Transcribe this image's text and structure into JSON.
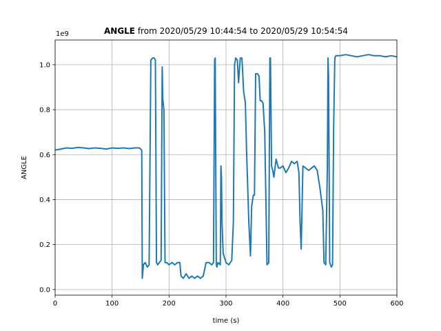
{
  "chart_data": {
    "type": "line",
    "title_bold": "ANGLE",
    "title_rest": " from 2020/05/29 10:44:54 to 2020/05/29 10:54:54",
    "xlabel": "time (s)",
    "ylabel": "ANGLE",
    "offset_label": "1e9",
    "xlim": [
      0,
      600
    ],
    "ylim": [
      -0.025,
      1.11
    ],
    "xticks": [
      0,
      100,
      200,
      300,
      400,
      500,
      600
    ],
    "xtick_labels": [
      "0",
      "100",
      "200",
      "300",
      "400",
      "500",
      "600"
    ],
    "yticks": [
      0.0,
      0.2,
      0.4,
      0.6,
      0.8,
      1.0
    ],
    "ytick_labels": [
      "0.0",
      "0.2",
      "0.4",
      "0.6",
      "0.8",
      "1.0"
    ],
    "grid": true,
    "color": "#1f77b4",
    "series": [
      {
        "x": [
          0,
          10,
          20,
          30,
          40,
          50,
          60,
          70,
          80,
          90,
          100,
          110,
          120,
          130,
          140,
          148,
          152,
          153,
          155,
          158,
          162,
          165,
          168,
          171,
          174,
          176,
          178,
          180,
          183,
          186,
          188,
          189,
          191,
          193,
          196,
          200,
          205,
          210,
          215,
          219,
          221,
          225,
          230,
          235,
          240,
          245,
          250,
          255,
          260,
          265,
          270,
          275,
          278,
          280,
          281,
          283,
          284,
          286,
          290,
          291,
          292,
          293,
          295,
          300,
          305,
          310,
          313,
          315,
          317,
          320,
          322,
          325,
          328,
          331,
          334,
          336,
          340,
          343,
          345,
          348,
          350,
          352,
          355,
          358,
          360,
          362,
          365,
          368,
          372,
          375,
          377,
          378,
          380,
          382,
          384,
          388,
          392,
          395,
          400,
          405,
          410,
          415,
          420,
          425,
          428,
          430,
          432,
          435,
          440,
          445,
          450,
          455,
          460,
          465,
          468,
          470,
          472,
          475,
          478,
          479,
          480,
          482,
          485,
          487,
          489,
          491,
          493,
          500,
          510,
          520,
          530,
          540,
          550,
          560,
          570,
          580,
          590,
          600
        ],
        "y": [
          0.62,
          0.625,
          0.63,
          0.628,
          0.632,
          0.63,
          0.627,
          0.63,
          0.628,
          0.625,
          0.63,
          0.628,
          0.63,
          0.627,
          0.63,
          0.63,
          0.62,
          0.05,
          0.11,
          0.12,
          0.1,
          0.11,
          1.02,
          1.03,
          1.03,
          1.02,
          0.12,
          0.11,
          0.12,
          0.13,
          0.99,
          0.85,
          0.8,
          0.12,
          0.12,
          0.11,
          0.12,
          0.11,
          0.12,
          0.12,
          0.06,
          0.05,
          0.07,
          0.05,
          0.06,
          0.05,
          0.06,
          0.05,
          0.06,
          0.12,
          0.12,
          0.11,
          0.12,
          1.02,
          1.03,
          0.11,
          0.1,
          0.12,
          0.11,
          0.55,
          0.5,
          0.3,
          0.16,
          0.12,
          0.11,
          0.13,
          0.3,
          1.0,
          1.03,
          1.02,
          0.92,
          1.03,
          1.03,
          0.88,
          0.83,
          0.62,
          0.3,
          0.15,
          0.37,
          0.42,
          0.42,
          0.96,
          0.96,
          0.95,
          0.84,
          0.84,
          0.83,
          0.7,
          0.11,
          0.12,
          1.03,
          1.03,
          0.55,
          0.53,
          0.5,
          0.58,
          0.54,
          0.54,
          0.55,
          0.52,
          0.54,
          0.57,
          0.56,
          0.57,
          0.52,
          0.3,
          0.18,
          0.55,
          0.54,
          0.53,
          0.54,
          0.55,
          0.53,
          0.45,
          0.39,
          0.35,
          0.12,
          0.11,
          0.55,
          1.03,
          0.95,
          0.12,
          0.1,
          0.11,
          0.72,
          1.03,
          1.04,
          1.04,
          1.045,
          1.04,
          1.035,
          1.04,
          1.045,
          1.04,
          1.04,
          1.035,
          1.04,
          1.035
        ]
      }
    ]
  }
}
